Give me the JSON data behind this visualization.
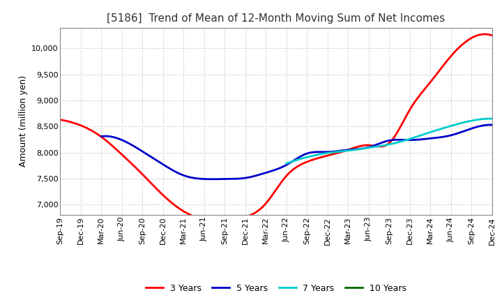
{
  "title": "[5186]  Trend of Mean of 12-Month Moving Sum of Net Incomes",
  "ylabel": "Amount (million yen)",
  "ylim": [
    6800,
    10400
  ],
  "yticks": [
    7000,
    7500,
    8000,
    8500,
    9000,
    9500,
    10000
  ],
  "background_color": "#FFFFFF",
  "plot_bg_color": "#FFFFFF",
  "grid_color": "#BBBBBB",
  "x_labels": [
    "Sep-19",
    "Dec-19",
    "Mar-20",
    "Jun-20",
    "Sep-20",
    "Dec-20",
    "Mar-21",
    "Jun-21",
    "Sep-21",
    "Dec-21",
    "Mar-22",
    "Jun-22",
    "Sep-22",
    "Dec-22",
    "Mar-23",
    "Jun-23",
    "Sep-23",
    "Dec-23",
    "Mar-24",
    "Jun-24",
    "Sep-24",
    "Dec-24"
  ],
  "series": {
    "3 Years": {
      "color": "#FF0000",
      "values": [
        8630,
        8520,
        8300,
        7960,
        7580,
        7180,
        6870,
        6720,
        6720,
        6760,
        7020,
        7550,
        7820,
        7940,
        8050,
        8140,
        8180,
        8820,
        9350,
        9850,
        10200,
        10250
      ]
    },
    "5 Years": {
      "color": "#0000CC",
      "values": [
        null,
        null,
        8310,
        8240,
        8020,
        7770,
        7560,
        7490,
        7490,
        7510,
        7610,
        7760,
        7980,
        8010,
        8050,
        8100,
        8230,
        8240,
        8270,
        8330,
        8460,
        8530
      ]
    },
    "7 Years": {
      "color": "#00CCCC",
      "values": [
        null,
        null,
        null,
        null,
        null,
        null,
        null,
        null,
        null,
        null,
        null,
        7790,
        7910,
        7990,
        8035,
        8090,
        8155,
        8260,
        8390,
        8510,
        8610,
        8650
      ]
    },
    "10 Years": {
      "color": "#006600",
      "values": [
        null,
        null,
        null,
        null,
        null,
        null,
        null,
        null,
        null,
        null,
        null,
        null,
        null,
        null,
        null,
        null,
        null,
        null,
        null,
        null,
        null,
        null
      ]
    }
  },
  "legend_order": [
    "3 Years",
    "5 Years",
    "7 Years",
    "10 Years"
  ],
  "title_fontsize": 11,
  "axis_fontsize": 9,
  "tick_fontsize": 8,
  "legend_fontsize": 9,
  "linewidth": 2.0
}
